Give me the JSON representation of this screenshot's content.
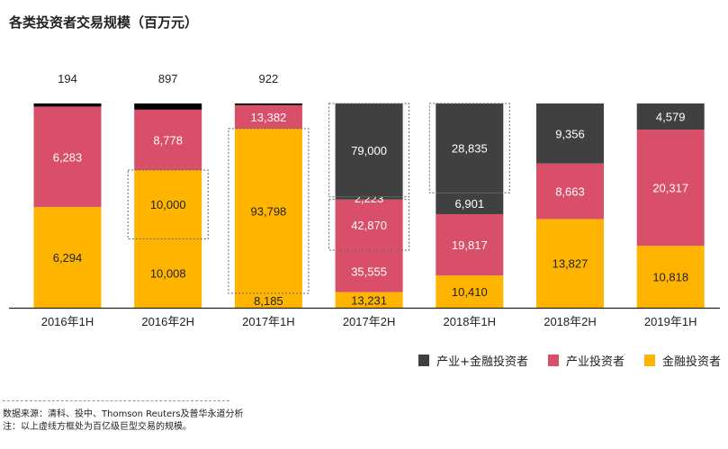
{
  "chart_data": {
    "type": "bar",
    "stacked": "100%",
    "title": "各类投资者交易规模（百万元）",
    "categories": [
      "2016年1H",
      "2016年2H",
      "2017年1H",
      "2017年2H",
      "2018年1H",
      "2018年2H",
      "2019年1H"
    ],
    "series": [
      {
        "name": "产业+金融投资者",
        "color": "#404040"
      },
      {
        "name": "产业投资者",
        "color": "#D94F6A"
      },
      {
        "name": "金融投资者",
        "color": "#FFB500"
      }
    ],
    "stacks": [
      [
        {
          "series": 2,
          "value": 6294
        },
        {
          "series": 1,
          "value": 6283
        },
        {
          "series": 0,
          "value": 194,
          "label_above": true
        }
      ],
      [
        {
          "series": 2,
          "value": 10008
        },
        {
          "series": 2,
          "value": 10000,
          "megadeal": true
        },
        {
          "series": 1,
          "value": 8778
        },
        {
          "series": 0,
          "value": 897,
          "label_above": true
        }
      ],
      [
        {
          "series": 2,
          "value": 8185
        },
        {
          "series": 2,
          "value": 93798,
          "megadeal": true
        },
        {
          "series": 1,
          "value": 13382
        },
        {
          "series": 0,
          "value": 922,
          "label_above": true
        }
      ],
      [
        {
          "series": 2,
          "value": 13231
        },
        {
          "series": 1,
          "value": 35555
        },
        {
          "series": 1,
          "value": 42870,
          "megadeal": true
        },
        {
          "series": 0,
          "value": 2223
        },
        {
          "series": 0,
          "value": 79000,
          "megadeal": true
        }
      ],
      [
        {
          "series": 2,
          "value": 10410
        },
        {
          "series": 1,
          "value": 19817
        },
        {
          "series": 0,
          "value": 6901
        },
        {
          "series": 0,
          "value": 28835,
          "megadeal": true
        }
      ],
      [
        {
          "series": 2,
          "value": 13827
        },
        {
          "series": 1,
          "value": 8663
        },
        {
          "series": 0,
          "value": 9356
        }
      ],
      [
        {
          "series": 2,
          "value": 10818
        },
        {
          "series": 1,
          "value": 20317
        },
        {
          "series": 0,
          "value": 4579
        }
      ]
    ],
    "legend_position": "bottom-right",
    "grid": false
  },
  "legend": [
    "产业+金融投资者",
    "产业投资者",
    "金融投资者"
  ],
  "notes": {
    "source": "数据来源：清科、投中、Thomson Reuters及普华永道分析",
    "note": "注：以上虚线方框处为百亿级巨型交易的规模。"
  }
}
